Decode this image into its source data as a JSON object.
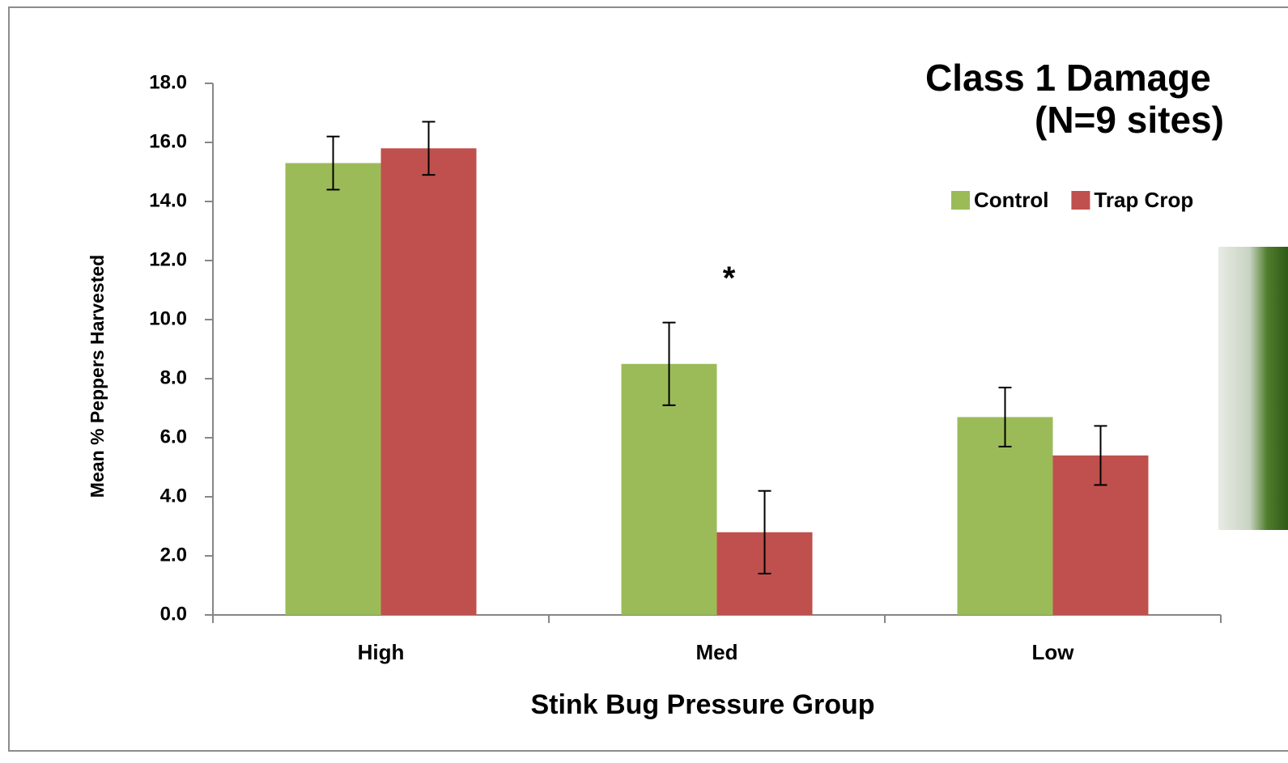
{
  "chart_data": {
    "type": "bar",
    "title": "Class 1 Damage",
    "subtitle": "(N=9 sites)",
    "x_label": "Stink Bug Pressure Group",
    "y_label": "Mean % Peppers Harvested",
    "categories": [
      "High",
      "Med",
      "Low"
    ],
    "series": [
      {
        "name": "Control",
        "color": "#9bbb59",
        "values": [
          15.3,
          8.5,
          6.7
        ],
        "errors": [
          0.9,
          1.4,
          1.0
        ]
      },
      {
        "name": "Trap Crop",
        "color": "#c0504d",
        "values": [
          15.8,
          2.8,
          5.4
        ],
        "errors": [
          0.9,
          1.4,
          1.0
        ]
      }
    ],
    "annotations": [
      {
        "text": "*",
        "category": "Med"
      }
    ],
    "ylim": [
      0,
      18
    ],
    "yticks": [
      {
        "value": 0,
        "label": "0.0"
      },
      {
        "value": 2,
        "label": "2.0"
      },
      {
        "value": 4,
        "label": "4.0"
      },
      {
        "value": 6,
        "label": "6.0"
      },
      {
        "value": 8,
        "label": "8.0"
      },
      {
        "value": 10,
        "label": "10.0"
      },
      {
        "value": 12,
        "label": "12.0"
      },
      {
        "value": 14,
        "label": "14.0"
      },
      {
        "value": 16,
        "label": "16.0"
      },
      {
        "value": 18,
        "label": "18.0"
      }
    ],
    "grid": false,
    "legend": "top-right"
  }
}
